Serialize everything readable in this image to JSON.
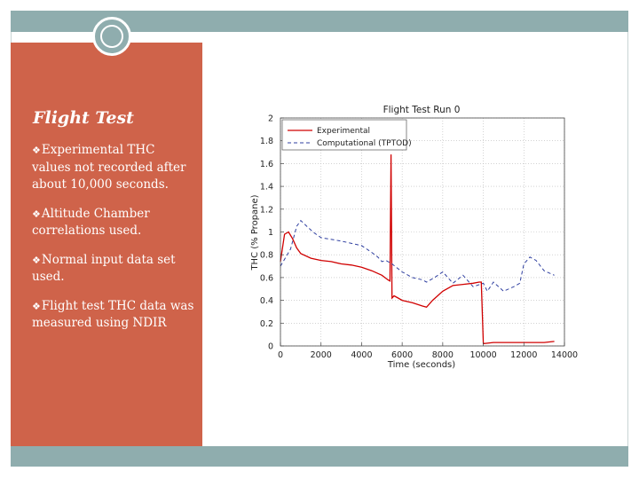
{
  "slide": {
    "title": "Flight Test",
    "bullet_icon": "diamond-bullet-icon",
    "bullets": [
      "Experimental THC values not recorded after about 10,000 seconds.",
      "Altitude Chamber correlations used.",
      "Normal input data set used.",
      "Flight test THC data was measured using NDIR"
    ]
  },
  "colors": {
    "panel": "#cf634a",
    "band": "#8fadae",
    "experimental": "#d00000",
    "computational": "#2f3fa0"
  },
  "chart_data": {
    "type": "line",
    "title": "Flight Test Run 0",
    "xlabel": "Time (seconds)",
    "ylabel": "THC (% Propane)",
    "xlim": [
      0,
      14000
    ],
    "ylim": [
      0,
      2
    ],
    "xticks": [
      0,
      2000,
      4000,
      6000,
      8000,
      10000,
      12000,
      14000
    ],
    "xtick_labels": [
      "0",
      "2000",
      "4000",
      "6000",
      "8000",
      "10000",
      "12000",
      "14000"
    ],
    "yticks": [
      0,
      0.2,
      0.4,
      0.6,
      0.8,
      1,
      1.2,
      1.4,
      1.6,
      1.8,
      2
    ],
    "ytick_labels": [
      "0",
      "0.2",
      "0.4",
      "0.6",
      "0.8",
      "1",
      "1.2",
      "1.4",
      "1.6",
      "1.8",
      "2"
    ],
    "grid": true,
    "legend_position": "top-left",
    "series": [
      {
        "name": "Experimental",
        "style": "solid",
        "x": [
          0,
          200,
          400,
          600,
          800,
          1000,
          1500,
          2000,
          2500,
          3000,
          3500,
          4000,
          4500,
          5000,
          5300,
          5400,
          5450,
          5500,
          5600,
          5800,
          6000,
          6500,
          7000,
          7200,
          7500,
          8000,
          8500,
          9000,
          9500,
          9800,
          9900,
          10000,
          10500,
          11000,
          11500,
          12000,
          12500,
          13000,
          13500
        ],
        "y": [
          0.74,
          0.98,
          1.0,
          0.94,
          0.86,
          0.81,
          0.77,
          0.75,
          0.74,
          0.72,
          0.71,
          0.69,
          0.66,
          0.62,
          0.58,
          0.57,
          1.68,
          0.42,
          0.44,
          0.42,
          0.4,
          0.38,
          0.35,
          0.34,
          0.4,
          0.48,
          0.53,
          0.54,
          0.55,
          0.56,
          0.56,
          0.02,
          0.03,
          0.03,
          0.03,
          0.03,
          0.03,
          0.03,
          0.04
        ]
      },
      {
        "name": "Computational (TPTOD)",
        "style": "dashed",
        "x": [
          0,
          500,
          800,
          1000,
          1300,
          1600,
          2000,
          3000,
          4000,
          4500,
          4800,
          5000,
          5200,
          5500,
          6000,
          6500,
          7000,
          7200,
          7600,
          8000,
          8500,
          9000,
          9500,
          10000,
          10200,
          10500,
          11000,
          11500,
          11800,
          12000,
          12300,
          12600,
          13000,
          13500
        ],
        "y": [
          0.7,
          0.85,
          1.05,
          1.1,
          1.05,
          1.0,
          0.95,
          0.92,
          0.88,
          0.82,
          0.78,
          0.74,
          0.75,
          0.72,
          0.65,
          0.6,
          0.58,
          0.56,
          0.6,
          0.65,
          0.55,
          0.62,
          0.52,
          0.55,
          0.48,
          0.56,
          0.48,
          0.52,
          0.55,
          0.72,
          0.78,
          0.75,
          0.66,
          0.62
        ]
      }
    ]
  }
}
